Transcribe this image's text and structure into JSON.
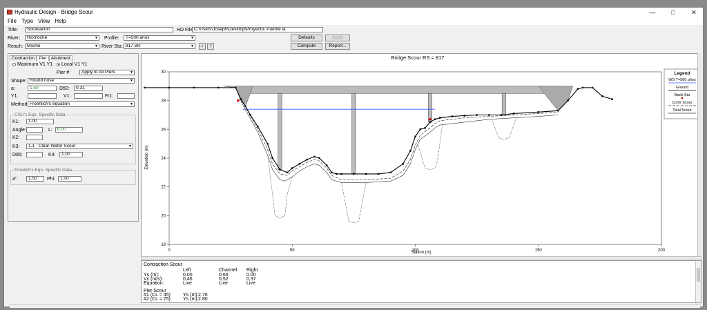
{
  "window": {
    "title": "Hydraulic Design - Bridge Scour",
    "min_icon": "minimize-icon",
    "max_icon": "maximize-icon",
    "close_icon": "close-icon"
  },
  "menu": [
    "File",
    "Type",
    "View",
    "Help"
  ],
  "form": {
    "title_label": "Title:",
    "title_value": "Socavacion",
    "hd_file_label": "HD File:",
    "hd_file_value": "C:\\Users\\Joseph\\Desktop\\Proyecto- Puente la",
    "river_label": "River:",
    "river_value": "Riomoche",
    "profile_label": "Profile:",
    "profile_value": "T=500 años",
    "reach_label": "Reach:",
    "reach_value": "Moche",
    "river_sta_label": "River Sta.:",
    "river_sta_value": "817   BR",
    "defaults_button": "Defaults",
    "apply_button": "Apply",
    "compute_button": "Compute",
    "report_button": "Report..."
  },
  "panel": {
    "tabs": [
      "Contraction",
      "Pier",
      "Abutment"
    ],
    "max_v1y1": "Maximum V1 Y1",
    "local_v1y1": "Local V1 Y1",
    "pier_label": "Pier #",
    "apply_all": "Apply to All Piers",
    "shape_label": "Shape:",
    "shape_value": "Round nose",
    "a_label": "a:",
    "a_value": "1.50",
    "d50_label": "D50:",
    "d50_value": "0.31",
    "y1_label": "Y1:",
    "v1_label": "V1:",
    "fr1_label": "Fr1:",
    "method_label": "Method",
    "method_value": "Froehlich's equation",
    "csu_title": "CSU's Eqn. Specific Data",
    "k1_label": "K1:",
    "k1_value": "1.00",
    "angle_label": "Angle:",
    "l_label": "L:",
    "l_value": "6.00",
    "k2_label": "K2:",
    "k3_label": "K3:",
    "k3_value": "1.1 - Clear-Water Scour",
    "d95_label": "D95:",
    "k4_label": "K4:",
    "k4_value": "1.00",
    "froehlich_title": "Froelich's Eqn. Specific Data",
    "a2_label": "a':",
    "a2_value": "1.50",
    "phi_label": "Phi:",
    "phi_value": "1.00"
  },
  "chart_data": {
    "type": "line",
    "title": "Bridge Scour RS = 817",
    "xlabel": "Station (m)",
    "ylabel": "Elevation (m)",
    "xlim": [
      0,
      200
    ],
    "ylim": [
      18,
      30
    ],
    "xticks": [
      0,
      50,
      100,
      150,
      200
    ],
    "yticks": [
      18,
      20,
      22,
      24,
      26,
      28,
      30
    ],
    "ws_elevation": 27.4,
    "bridge_deck": {
      "x": [
        28,
        158
      ],
      "low": 28.5,
      "high": 29.0
    },
    "piers": [
      {
        "x": 45,
        "width": 1.5
      },
      {
        "x": 75,
        "width": 1.5
      },
      {
        "x": 106,
        "width": 1.5
      },
      {
        "x": 136,
        "width": 1.5
      }
    ],
    "ground": {
      "x": [
        -10,
        0,
        10,
        20,
        27,
        29,
        31,
        33,
        36,
        40,
        42,
        45,
        48,
        50,
        53,
        56,
        59,
        61,
        64,
        66,
        68,
        70,
        75,
        80,
        85,
        90,
        95,
        98,
        100,
        102,
        104,
        106,
        108,
        110,
        115,
        120,
        125,
        130,
        135,
        140,
        150,
        158,
        162,
        166,
        168,
        172,
        176,
        180
      ],
      "y": [
        28.9,
        28.9,
        28.9,
        28.9,
        28.9,
        28.1,
        27.6,
        27.0,
        26.2,
        25.0,
        24.0,
        23.2,
        23.0,
        23.3,
        23.6,
        23.9,
        24.1,
        24.0,
        23.5,
        23.0,
        22.9,
        22.9,
        22.9,
        22.9,
        22.9,
        23.0,
        23.6,
        24.5,
        25.5,
        26.0,
        26.1,
        26.5,
        26.7,
        26.8,
        26.9,
        26.95,
        27.0,
        27.0,
        27.0,
        27.1,
        27.2,
        27.3,
        28.0,
        28.8,
        28.9,
        28.9,
        28.3,
        28.1
      ]
    },
    "total_scour": {
      "x": [
        29,
        36,
        40,
        42,
        45,
        47,
        50,
        53,
        56,
        59,
        61,
        64,
        66,
        70,
        80,
        90,
        95,
        98,
        100,
        102,
        106,
        108,
        110,
        120,
        130,
        140,
        150,
        158
      ],
      "y": [
        28.0,
        25.8,
        24.2,
        23.2,
        22.5,
        22.4,
        22.7,
        23.1,
        23.4,
        23.6,
        23.5,
        23.0,
        22.5,
        22.3,
        22.3,
        22.4,
        22.8,
        23.6,
        24.6,
        25.3,
        25.8,
        26.1,
        26.3,
        26.5,
        26.7,
        26.8,
        26.9,
        27.0
      ]
    },
    "contraction_scour": {
      "x": [
        29,
        36,
        40,
        42,
        45,
        48,
        50,
        53,
        56,
        59,
        61,
        64,
        66,
        70,
        80,
        90,
        95,
        98,
        100,
        102,
        106,
        108,
        110,
        120,
        130,
        140,
        150,
        158
      ],
      "y": [
        28.2,
        26.0,
        24.6,
        23.6,
        22.9,
        22.8,
        23.1,
        23.4,
        23.7,
        23.9,
        23.8,
        23.3,
        22.8,
        22.5,
        22.5,
        22.6,
        23.1,
        23.9,
        24.9,
        25.6,
        26.1,
        26.4,
        26.6,
        26.8,
        26.9,
        27.0,
        27.1,
        27.2
      ]
    },
    "pier_scour": [
      {
        "x": [
          40,
          42,
          43,
          45,
          47,
          48,
          50
        ],
        "y": [
          24.2,
          21.5,
          20.0,
          19.8,
          20.0,
          21.5,
          22.7
        ]
      },
      {
        "x": [
          70,
          72,
          73,
          75,
          77,
          78,
          80
        ],
        "y": [
          22.3,
          20.5,
          19.6,
          19.5,
          19.6,
          20.5,
          22.3
        ]
      },
      {
        "x": [
          101,
          103,
          104,
          106,
          108,
          109,
          111
        ],
        "y": [
          25.0,
          23.8,
          23.3,
          23.2,
          23.3,
          23.8,
          26.3
        ]
      },
      {
        "x": [
          131,
          133,
          134,
          136,
          138,
          139,
          141
        ],
        "y": [
          26.7,
          25.8,
          25.4,
          25.3,
          25.4,
          25.8,
          26.8
        ]
      }
    ],
    "bank_stations": [
      {
        "x": 28,
        "y": 28.0
      },
      {
        "x": 106,
        "y": 26.7
      }
    ],
    "legend": {
      "title": "Legend",
      "entries": [
        "WS T=500 años",
        "Ground",
        "Bank Sta",
        "Contr Scour",
        "Total Scour"
      ],
      "placement": "top-right"
    },
    "colors": {
      "ws": "#3355ff",
      "ground": "#000000",
      "bank": "#cc0000",
      "deck": "#bbbbbb",
      "scour": "#333333"
    }
  },
  "output": {
    "section1_title": "Contraction Scour",
    "col_headers": [
      "Left",
      "Channel",
      "Right"
    ],
    "rows": [
      {
        "label": "Ys (m):",
        "values": [
          "0.00",
          "0.66",
          "0.00"
        ]
      },
      {
        "label": "Vc (m/s):",
        "values": [
          "0.46",
          "0.52",
          "0.37"
        ]
      },
      {
        "label": "Equation:",
        "values": [
          "Live",
          "Live",
          "Live"
        ]
      }
    ],
    "section2_title": "Pier Scour",
    "pier_rows": [
      {
        "label": "#1 (CL = 45)",
        "ys_label": "Ys (m):",
        "value": "2.76"
      },
      {
        "label": "#2 (CL = 75)",
        "ys_label": "Ys (m):",
        "value": "2.80"
      }
    ]
  }
}
